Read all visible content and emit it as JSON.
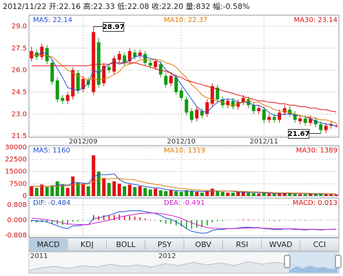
{
  "header": "2012/11/22 开:22.16 高:22.33 低:22.08 收:22.20 量:832 幅:-0.58%",
  "tabs": [
    "MACD",
    "KDJ",
    "BOLL",
    "PSY",
    "OBV",
    "RSI",
    "WVAD",
    "CCI"
  ],
  "navigator": {
    "labels": [
      "2011",
      "2012"
    ]
  },
  "chart_data": [
    {
      "type": "candlestick",
      "up_color": "#e01010",
      "down_color": "#129a12",
      "categories": [
        null,
        null,
        null,
        null,
        null,
        null,
        null,
        null,
        null,
        null,
        "2012/09",
        null,
        null,
        null,
        null,
        null,
        null,
        null,
        null,
        null,
        null,
        null,
        null,
        null,
        null,
        null,
        null,
        null,
        null,
        "2012/10",
        null,
        null,
        null,
        null,
        null,
        null,
        null,
        null,
        null,
        null,
        null,
        null,
        null,
        null,
        null,
        "2012/11",
        null,
        null,
        null,
        null,
        null,
        null,
        null,
        null,
        null,
        null,
        null,
        null,
        null,
        null
      ],
      "open": [
        26.8,
        27.2,
        26.9,
        27.5,
        26.5,
        25.3,
        24.1,
        23.9,
        24.2,
        25.8,
        24.7,
        25.3,
        24.5,
        27.9,
        25.1,
        26.2,
        25.9,
        26.7,
        27.0,
        26.6,
        27.2,
        27.0,
        27.1,
        26.5,
        26.2,
        26.4,
        25.6,
        25.1,
        25.5,
        24.6,
        24.0,
        23.2,
        22.7,
        23.2,
        23.0,
        23.7,
        24.8,
        24.0,
        23.6,
        23.9,
        23.5,
        23.8,
        24.0,
        23.6,
        23.2,
        23.3,
        22.6,
        22.8,
        22.6,
        23.1,
        23.3,
        23.0,
        22.5,
        22.7,
        22.4,
        22.6,
        22.3,
        21.9,
        22.2,
        22.16
      ],
      "high": [
        27.6,
        27.4,
        27.8,
        27.7,
        26.7,
        25.5,
        24.3,
        24.5,
        26.2,
        26.0,
        25.6,
        25.5,
        28.97,
        28.2,
        26.5,
        26.4,
        27.0,
        27.3,
        27.2,
        27.5,
        27.4,
        27.4,
        27.3,
        26.7,
        26.8,
        26.6,
        25.8,
        25.8,
        25.7,
        24.8,
        24.2,
        23.4,
        23.5,
        23.4,
        24.0,
        25.1,
        25.0,
        24.2,
        24.1,
        24.1,
        24.0,
        24.3,
        24.2,
        23.8,
        23.6,
        23.5,
        23.0,
        23.0,
        23.3,
        23.6,
        23.5,
        23.2,
        22.9,
        22.9,
        22.9,
        22.8,
        22.5,
        22.4,
        22.5,
        22.33
      ],
      "low": [
        26.6,
        26.7,
        26.7,
        26.4,
        25.0,
        23.8,
        23.7,
        23.7,
        24.0,
        24.4,
        24.5,
        24.8,
        24.3,
        24.8,
        24.9,
        25.8,
        25.7,
        26.5,
        26.3,
        26.4,
        26.7,
        26.8,
        26.3,
        26.1,
        26.0,
        25.5,
        24.8,
        24.9,
        24.3,
        23.9,
        22.9,
        22.4,
        22.5,
        22.7,
        22.8,
        23.5,
        23.8,
        23.4,
        23.4,
        23.3,
        23.3,
        23.6,
        23.4,
        23.0,
        23.0,
        22.4,
        22.4,
        22.4,
        22.4,
        22.9,
        22.8,
        22.4,
        22.3,
        22.2,
        22.2,
        22.1,
        21.67,
        21.7,
        22.0,
        22.08
      ],
      "close": [
        27.3,
        26.9,
        27.6,
        26.6,
        25.2,
        24.0,
        23.9,
        24.3,
        26.0,
        24.6,
        25.4,
        25.0,
        28.6,
        25.0,
        26.3,
        26.0,
        26.8,
        27.1,
        26.5,
        27.3,
        26.9,
        27.2,
        26.5,
        26.3,
        26.6,
        25.7,
        25.0,
        25.6,
        24.5,
        24.1,
        23.1,
        22.6,
        23.3,
        22.9,
        23.8,
        24.9,
        24.0,
        23.6,
        23.9,
        23.5,
        23.8,
        24.1,
        23.6,
        23.2,
        23.4,
        22.6,
        22.8,
        22.6,
        23.1,
        23.4,
        23.0,
        22.6,
        22.7,
        22.4,
        22.7,
        22.3,
        21.9,
        22.2,
        22.3,
        22.2
      ],
      "ylim": [
        21.41,
        29.75
      ],
      "yticks": [
        {
          "value": 29,
          "label": "29.0"
        },
        27.5,
        {
          "value": 26,
          "label": "26.0"
        },
        24.5,
        {
          "value": 23,
          "label": "23.0"
        },
        21.5
      ],
      "legend": [
        {
          "text": "MA5: 22.14",
          "color": "#2050d0"
        },
        {
          "text": "MA10: 22.37",
          "color": "#e07800"
        },
        {
          "text": "MA30: 23.14",
          "color": "#e01010"
        }
      ],
      "lines": [
        {
          "color": "#2050d0",
          "values": [
            27.0,
            27.0,
            27.2,
            27.1,
            26.7,
            26.1,
            25.5,
            24.8,
            24.7,
            24.6,
            24.8,
            25.1,
            26.0,
            25.8,
            26.1,
            26.4,
            26.6,
            26.4,
            26.5,
            26.7,
            26.9,
            27.0,
            26.9,
            26.8,
            26.7,
            26.5,
            26.0,
            25.8,
            25.5,
            25.0,
            24.5,
            24.0,
            23.5,
            23.2,
            23.1,
            23.5,
            23.8,
            24.0,
            24.0,
            24.0,
            23.8,
            23.8,
            23.8,
            23.6,
            23.6,
            23.4,
            23.1,
            22.9,
            22.9,
            23.0,
            23.0,
            22.9,
            22.9,
            22.8,
            22.7,
            22.5,
            22.4,
            22.3,
            22.3,
            22.14
          ]
        },
        {
          "color": "#e07800",
          "values": [
            27.0,
            27.0,
            27.0,
            27.0,
            26.9,
            26.6,
            26.3,
            26.0,
            25.8,
            25.6,
            25.5,
            25.3,
            25.4,
            25.3,
            25.4,
            25.5,
            25.7,
            25.9,
            26.3,
            26.4,
            26.5,
            26.7,
            26.7,
            26.7,
            26.7,
            26.7,
            26.5,
            26.4,
            26.2,
            25.8,
            25.5,
            25.0,
            24.7,
            24.3,
            24.1,
            24.0,
            23.9,
            23.8,
            23.6,
            23.6,
            23.7,
            23.8,
            23.9,
            23.8,
            23.8,
            23.6,
            23.5,
            23.3,
            23.2,
            23.2,
            23.1,
            23.0,
            22.9,
            22.8,
            22.8,
            22.7,
            22.6,
            22.6,
            22.5,
            22.37
          ]
        },
        {
          "color": "#e01010",
          "values": [
            26.3,
            26.3,
            26.3,
            26.3,
            26.3,
            26.3,
            26.3,
            26.3,
            26.3,
            26.3,
            26.3,
            26.3,
            26.4,
            26.4,
            26.4,
            26.4,
            26.5,
            26.5,
            26.5,
            26.5,
            26.5,
            26.4,
            26.3,
            26.2,
            26.1,
            26.0,
            25.9,
            25.8,
            25.6,
            25.5,
            25.3,
            25.2,
            25.1,
            25.0,
            24.9,
            24.8,
            24.7,
            24.6,
            24.5,
            24.4,
            24.3,
            24.2,
            24.1,
            24.0,
            23.9,
            23.9,
            23.8,
            23.8,
            23.7,
            23.7,
            23.6,
            23.6,
            23.5,
            23.5,
            23.4,
            23.4,
            23.3,
            23.3,
            23.2,
            23.14
          ]
        }
      ]
    },
    {
      "type": "volume",
      "values": [
        6000,
        5000,
        7000,
        5500,
        6500,
        9000,
        7000,
        5000,
        12000,
        8000,
        7500,
        6000,
        25000,
        15000,
        11000,
        8000,
        9000,
        7500,
        6000,
        7000,
        5500,
        6000,
        5000,
        4000,
        4500,
        3500,
        3000,
        3500,
        3000,
        2500,
        3500,
        3000,
        2500,
        2000,
        3000,
        4500,
        3000,
        2500,
        2000,
        2000,
        2500,
        2500,
        2000,
        1800,
        1500,
        2000,
        1500,
        1400,
        1800,
        2000,
        1500,
        1300,
        1200,
        1100,
        1300,
        1200,
        1500,
        1000,
        900,
        832
      ],
      "ylim": [
        0,
        31000
      ],
      "yticks": [
        30000,
        22500,
        15000,
        7500,
        0
      ],
      "legend": [
        {
          "text": "MA5: 1160",
          "color": "#2050d0"
        },
        {
          "text": "MA10: 1319",
          "color": "#e07800"
        },
        {
          "text": "MA30: 1389",
          "color": "#e01010"
        }
      ],
      "lines": [
        {
          "color": "#2050d0",
          "values": [
            6000,
            6000,
            6000,
            6000,
            6000,
            6600,
            7000,
            6600,
            7900,
            8300,
            7900,
            7700,
            11700,
            13300,
            13100,
            13200,
            13600,
            10100,
            8300,
            7700,
            7000,
            6400,
            5900,
            5300,
            5000,
            4700,
            4000,
            3700,
            3500,
            3100,
            3100,
            3100,
            2900,
            2700,
            2900,
            3100,
            3000,
            3000,
            3000,
            2800,
            2400,
            2300,
            2200,
            2200,
            2100,
            2000,
            1800,
            1600,
            1600,
            1700,
            1600,
            1600,
            1600,
            1500,
            1300,
            1200,
            1300,
            1200,
            1200,
            1160
          ]
        },
        {
          "color": "#e07800",
          "values": [
            6000,
            6000,
            6000,
            6000,
            6000,
            6100,
            6300,
            6300,
            6700,
            7100,
            7200,
            7300,
            9000,
            10100,
            10500,
            10500,
            10800,
            10900,
            10200,
            10200,
            9900,
            9000,
            8300,
            7700,
            7100,
            6700,
            6000,
            5500,
            5000,
            4600,
            4300,
            4000,
            3800,
            3500,
            3300,
            3200,
            3100,
            3100,
            3000,
            3000,
            2900,
            2800,
            2600,
            2500,
            2400,
            2300,
            2200,
            2000,
            1900,
            1900,
            1900,
            1800,
            1800,
            1700,
            1600,
            1500,
            1500,
            1400,
            1400,
            1319
          ]
        }
      ]
    },
    {
      "type": "macd",
      "up_color": "#e01010",
      "down_color": "#129a12",
      "values": [
        -0.1,
        -0.13,
        -0.1,
        -0.12,
        -0.18,
        -0.22,
        -0.25,
        -0.25,
        -0.08,
        -0.06,
        -0.01,
        -0.01,
        0.27,
        0.22,
        0.26,
        0.25,
        0.28,
        0.3,
        0.24,
        0.23,
        0.19,
        0.15,
        0.08,
        0.02,
        -0.02,
        -0.1,
        -0.2,
        -0.2,
        -0.28,
        -0.34,
        -0.43,
        -0.46,
        -0.41,
        -0.37,
        -0.28,
        -0.12,
        -0.06,
        -0.05,
        0.0,
        0.0,
        0.02,
        0.05,
        0.04,
        0.02,
        0.02,
        -0.02,
        -0.03,
        -0.05,
        -0.04,
        -0.01,
        -0.01,
        -0.03,
        -0.02,
        -0.03,
        -0.01,
        -0.01,
        -0.02,
        0.0,
        0.0,
        0.013
      ],
      "ylim": [
        -0.918,
        1.176
      ],
      "yticks": [
        0.808,
        {
          "value": 0,
          "label": "0.000"
        },
        -0.808
      ],
      "legend": [
        {
          "text": "DIF: -0.484",
          "color": "#2050d0"
        },
        {
          "text": "DEA: -0.491",
          "color": "#d020d0"
        },
        {
          "text": "MACD: 0.013",
          "color": "#e01010"
        }
      ],
      "lines": [
        {
          "color": "#2050d0",
          "values": [
            0.0,
            -0.05,
            -0.05,
            -0.1,
            -0.2,
            -0.3,
            -0.4,
            -0.45,
            -0.3,
            -0.3,
            -0.25,
            -0.25,
            0.1,
            0.1,
            0.2,
            0.25,
            0.35,
            0.45,
            0.45,
            0.5,
            0.5,
            0.5,
            0.45,
            0.4,
            0.35,
            0.25,
            0.1,
            0.05,
            -0.1,
            -0.25,
            -0.45,
            -0.6,
            -0.65,
            -0.7,
            -0.68,
            -0.55,
            -0.5,
            -0.5,
            -0.45,
            -0.45,
            -0.42,
            -0.38,
            -0.38,
            -0.4,
            -0.4,
            -0.45,
            -0.47,
            -0.5,
            -0.5,
            -0.47,
            -0.47,
            -0.5,
            -0.5,
            -0.52,
            -0.5,
            -0.5,
            -0.52,
            -0.5,
            -0.49,
            -0.484
          ]
        },
        {
          "color": "#d020d0",
          "values": [
            0.1,
            0.08,
            0.05,
            0.02,
            -0.02,
            -0.08,
            -0.15,
            -0.2,
            -0.22,
            -0.24,
            -0.24,
            -0.24,
            -0.17,
            -0.12,
            -0.06,
            0.0,
            0.07,
            0.15,
            0.21,
            0.27,
            0.31,
            0.35,
            0.37,
            0.38,
            0.37,
            0.35,
            0.3,
            0.25,
            0.18,
            0.09,
            -0.02,
            -0.14,
            -0.24,
            -0.33,
            -0.4,
            -0.43,
            -0.44,
            -0.45,
            -0.45,
            -0.45,
            -0.44,
            -0.43,
            -0.42,
            -0.42,
            -0.42,
            -0.43,
            -0.44,
            -0.45,
            -0.46,
            -0.46,
            -0.46,
            -0.47,
            -0.48,
            -0.49,
            -0.49,
            -0.49,
            -0.5,
            -0.5,
            -0.49,
            -0.491
          ]
        }
      ]
    }
  ]
}
